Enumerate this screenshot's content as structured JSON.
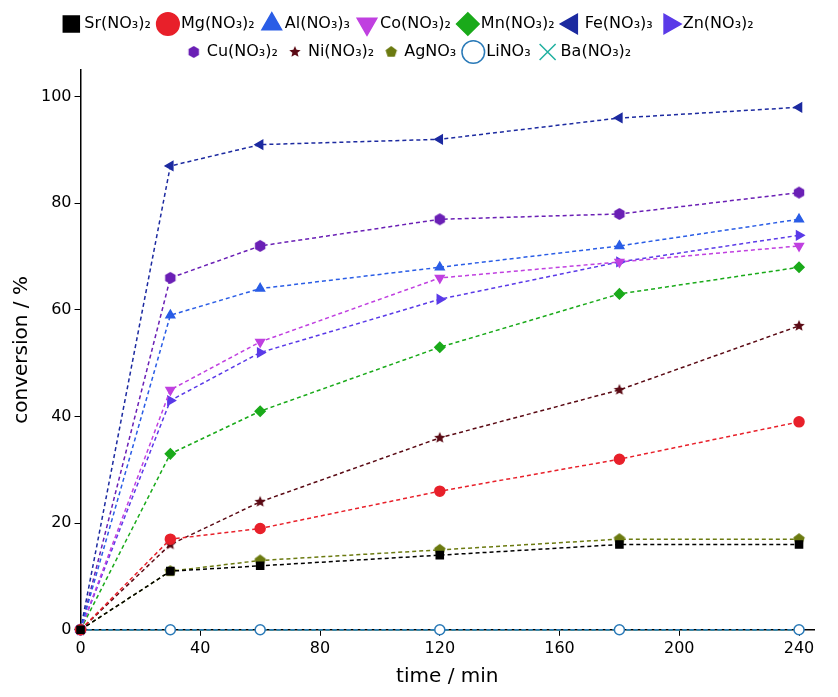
{
  "chart_data": {
    "type": "line",
    "x_label": "time / min",
    "y_label": "conversion / %",
    "x": [
      0,
      30,
      60,
      120,
      180,
      240
    ],
    "xlim": [
      0,
      245
    ],
    "xticks": [
      0,
      40,
      80,
      120,
      160,
      200,
      240
    ],
    "ylim": [
      0,
      105
    ],
    "yticks": [
      0,
      20,
      40,
      60,
      80,
      100
    ],
    "grid": false,
    "legend": "top",
    "line_style": "dashed",
    "series": [
      {
        "name": "Sr(NO₃)₂",
        "color": "#000000",
        "marker": "square",
        "values": [
          0,
          11,
          12,
          14,
          16,
          16
        ]
      },
      {
        "name": "Mg(NO₃)₂",
        "color": "#e8202a",
        "marker": "circle",
        "values": [
          0,
          17,
          19,
          26,
          32,
          39
        ]
      },
      {
        "name": "Al(NO₃)₃",
        "color": "#2a5de6",
        "marker": "triangle-up",
        "values": [
          0,
          59,
          64,
          68,
          72,
          77
        ]
      },
      {
        "name": "Co(NO₃)₂",
        "color": "#c040e0",
        "marker": "triangle-down",
        "values": [
          0,
          45,
          54,
          66,
          69,
          72
        ]
      },
      {
        "name": "Mn(NO₃)₂",
        "color": "#1aaa1a",
        "marker": "diamond",
        "values": [
          0,
          33,
          41,
          53,
          63,
          68
        ]
      },
      {
        "name": "Fe(NO₃)₃",
        "color": "#1c2aa0",
        "marker": "triangle-left",
        "values": [
          0,
          87,
          91,
          92,
          96,
          98
        ]
      },
      {
        "name": "Zn(NO₃)₂",
        "color": "#5a3ae8",
        "marker": "triangle-right",
        "values": [
          0,
          43,
          52,
          62,
          69,
          74
        ]
      },
      {
        "name": "Cu(NO₃)₂",
        "color": "#6a1fb5",
        "marker": "hexagon",
        "values": [
          0,
          66,
          72,
          77,
          78,
          82
        ]
      },
      {
        "name": "Ni(NO₃)₂",
        "color": "#5a0a14",
        "marker": "star",
        "values": [
          0,
          16,
          24,
          36,
          45,
          57
        ]
      },
      {
        "name": "AgNO₃",
        "color": "#6b7a10",
        "marker": "pentagon",
        "values": [
          0,
          11,
          13,
          15,
          17,
          17
        ]
      },
      {
        "name": "LiNO₃",
        "color": "#2a7ab8",
        "marker": "circle-open",
        "values": [
          0,
          0,
          0,
          0,
          0,
          0
        ]
      },
      {
        "name": "Ba(NO₃)₂",
        "color": "#20b0a0",
        "marker": "x",
        "values": [
          0,
          0,
          0,
          0,
          0,
          0
        ]
      }
    ]
  }
}
